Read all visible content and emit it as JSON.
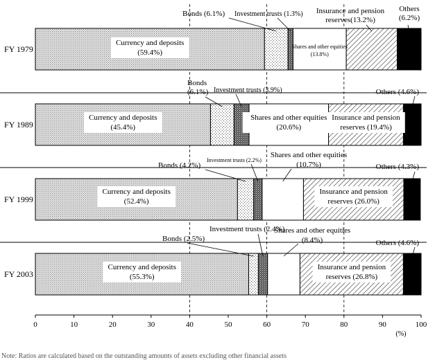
{
  "chart_data": {
    "type": "stacked-bar-horizontal",
    "title": "",
    "xlabel": "(%)",
    "ylabel": "",
    "xlim": [
      0,
      100
    ],
    "x_ticks": [
      "0",
      "10",
      "20",
      "30",
      "40",
      "50",
      "60",
      "70",
      "80",
      "90",
      "100"
    ],
    "dashed_gridlines_at": [
      40,
      60,
      80
    ],
    "categories": [
      "FY 1979",
      "FY 1989",
      "FY 1999",
      "FY 2003"
    ],
    "series": [
      {
        "name": "Currency and deposits",
        "values": [
          59.4,
          45.4,
          52.4,
          55.3
        ]
      },
      {
        "name": "Bonds",
        "values": [
          6.1,
          6.1,
          4.2,
          2.5
        ]
      },
      {
        "name": "Investment trusts",
        "values": [
          1.3,
          3.9,
          2.2,
          2.4
        ]
      },
      {
        "name": "Shares and other equities",
        "values": [
          13.8,
          20.6,
          10.7,
          8.4
        ]
      },
      {
        "name": "Insurance and pension reserves",
        "values": [
          13.2,
          19.4,
          26.0,
          26.8
        ]
      },
      {
        "name": "Others",
        "values": [
          6.2,
          4.6,
          4.3,
          4.6
        ]
      }
    ],
    "labels": [
      [
        [
          "Currency and deposits",
          "(59.4%)"
        ],
        [
          "Bonds (6.1%)"
        ],
        [
          "Investment trusts (1.3%)"
        ],
        [
          "Shares and other equities",
          "(13.8%)"
        ],
        [
          "Insurance and pension",
          "reserves(13.2%)"
        ],
        [
          "Others",
          "(6.2%)"
        ]
      ],
      [
        [
          "Currency and deposits",
          "(45.4%)"
        ],
        [
          "Bonds",
          "(6.1%)"
        ],
        [
          "Investment trusts (3.9%)"
        ],
        [
          "Shares and other equities",
          "(20.6%)"
        ],
        [
          "Insurance and pension",
          "reserves (19.4%)"
        ],
        [
          "Others (4.6%)"
        ]
      ],
      [
        [
          "Currency and deposits",
          "(52.4%)"
        ],
        [
          "Bonds (4.2%)"
        ],
        [
          "Investment trusts (2.2%)"
        ],
        [
          "Shares and other equities",
          "(10.7%)"
        ],
        [
          "Insurance and pension",
          "reserves (26.0%)"
        ],
        [
          "Others (4.3%)"
        ]
      ],
      [
        [
          "Currency and deposits",
          "(55.3%)"
        ],
        [
          "Bonds (2.5%)"
        ],
        [
          "Investment trusts (2.4%)"
        ],
        [
          "Shares and other equities",
          "(8.4%)"
        ],
        [
          "Insurance and pension",
          "reserves (26.8%)"
        ],
        [
          "Others (4.6%)"
        ]
      ]
    ],
    "note": "Note: Ratios are calculated based on the outstanding amounts of assets excluding other financial assets"
  }
}
